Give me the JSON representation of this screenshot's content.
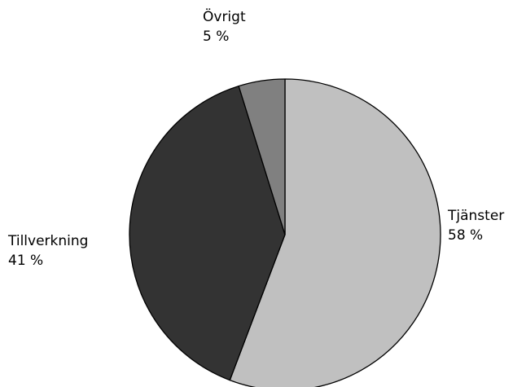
{
  "chart_data": {
    "type": "pie",
    "slices": [
      {
        "label": "Tjänster",
        "value": 58,
        "display": "58 %",
        "color": "#c0c0c0"
      },
      {
        "label": "Tillverkning",
        "value": 41,
        "display": "41 %",
        "color": "#333333"
      },
      {
        "label": "Övrigt",
        "value": 5,
        "display": "5 %",
        "color": "#808080"
      }
    ],
    "start_angle": "12 o'clock",
    "direction": "clockwise",
    "stroke_color": "#000000"
  }
}
